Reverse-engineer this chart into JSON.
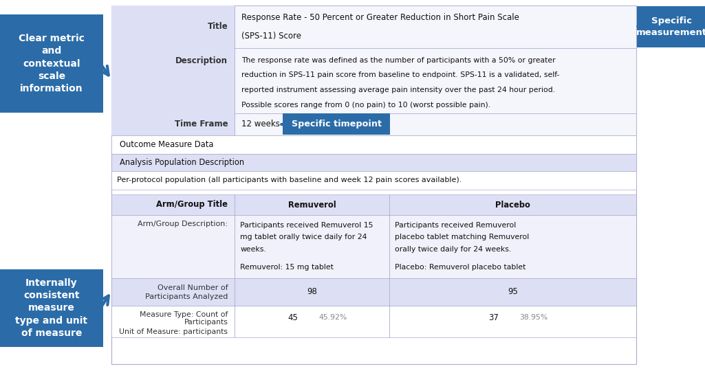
{
  "bg_color": "#ffffff",
  "row_alt_bg": "#dde0f5",
  "border_color": "#aaaacc",
  "title_row_label": "Title",
  "title_row_text_1": "Response Rate - 50 Percent or Greater Reduction in Short Pain Scale",
  "title_row_text_2": "(SPS-11) Score",
  "desc_row_label": "Description",
  "desc_row_lines": [
    "The response rate was defined as the number of participants with a 50% or greater",
    "reduction in SPS-11 pain score from baseline to endpoint. SPS-11 is a validated, self-",
    "reported instrument assessing average pain intensity over the past 24 hour period.",
    "Possible scores range from 0 (no pain) to 10 (worst possible pain)."
  ],
  "timeframe_label": "Time Frame",
  "timeframe_value": "12 weeks",
  "outcome_data_label": "Outcome Measure Data",
  "analysis_pop_label": "Analysis Population Description",
  "analysis_pop_text": "Per-protocol population (all participants with baseline and week 12 pain scores available).",
  "col_header_0": "Arm/Group Title",
  "col_header_1": "Remuverol",
  "col_header_2": "Placebo",
  "arm_desc_label": "Arm/Group Description:",
  "arm1_lines": [
    "Participants received Remuverol 15",
    "mg tablet orally twice daily for 24",
    "weeks.",
    "",
    "Remuverol: 15 mg tablet"
  ],
  "arm2_lines": [
    "Participants received Remuverol",
    "placebo tablet matching Remuverol",
    "orally twice daily for 24 weeks.",
    "",
    "Placebo: Remuverol placebo tablet"
  ],
  "overall_label_1": "Overall Number of",
  "overall_label_2": "Participants Analyzed",
  "overall_arm1": "98",
  "overall_arm2": "95",
  "measure_label_1": "Measure Type: Count of",
  "measure_label_2": "Participants",
  "unit_label": "Unit of Measure: participants",
  "measure_arm1_count": "45",
  "measure_arm1_pct": "45.92%",
  "measure_arm2_count": "37",
  "measure_arm2_pct": "38.95%",
  "arrow_color": "#2b6ca8",
  "label_bg": "#2b6ca8",
  "label_fg": "#ffffff",
  "box1_text": "Clear metric\nand\ncontextual\nscale\ninformation",
  "box2_text": "Specific\nmeasurement",
  "box3_text": "Specific timepoint",
  "box4_text": "Internally\nconsistent\nmeasure\ntype and unit\nof measure"
}
